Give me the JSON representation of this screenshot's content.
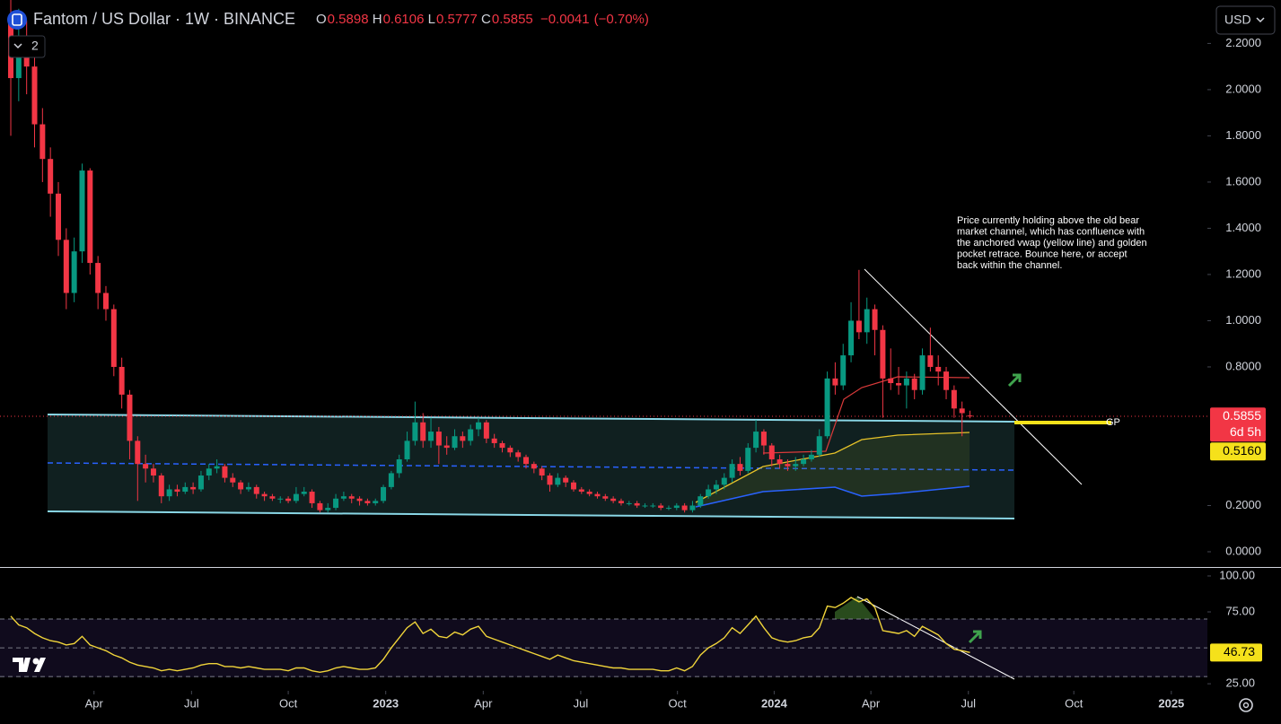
{
  "header": {
    "symbol": "Fantom / US Dollar · 1W · BINANCE",
    "o_label": "O",
    "h_label": "H",
    "l_label": "L",
    "c_label": "C",
    "change": "−0.0041",
    "change_pct": "(−0.70%)",
    "currency": "USD",
    "indicator_count": "2"
  },
  "annotation": [
    "Price currently holding above the old bear",
    "market channel, which has confluence with",
    "the anchored vwap (yellow line) and golden",
    "pocket retrace. Bounce here, or accept",
    "back within the channel."
  ],
  "gp_label": "GP",
  "countdown": "6d 5h",
  "vwap_tag": {
    "value": 0.516,
    "label": "0.5160"
  },
  "chart_data": [
    {
      "type": "candlestick",
      "up_color": "#089981",
      "down_color": "#f23645",
      "open": [
        2.3,
        2.05,
        2.2,
        2.1,
        1.85,
        1.7,
        1.55,
        1.35,
        1.12,
        1.3,
        1.65,
        1.25,
        1.12,
        1.05,
        0.8,
        0.68,
        0.48,
        0.38,
        0.36,
        0.33,
        0.24,
        0.27,
        0.26,
        0.28,
        0.27,
        0.33,
        0.36,
        0.37,
        0.32,
        0.3,
        0.27,
        0.28,
        0.25,
        0.24,
        0.23,
        0.23,
        0.22,
        0.25,
        0.26,
        0.21,
        0.18,
        0.19,
        0.23,
        0.24,
        0.23,
        0.22,
        0.21,
        0.22,
        0.28,
        0.34,
        0.4,
        0.48,
        0.56,
        0.48,
        0.52,
        0.46,
        0.45,
        0.5,
        0.48,
        0.53,
        0.56,
        0.49,
        0.47,
        0.45,
        0.43,
        0.41,
        0.38,
        0.36,
        0.33,
        0.29,
        0.32,
        0.3,
        0.27,
        0.26,
        0.25,
        0.24,
        0.23,
        0.22,
        0.21,
        0.21,
        0.2,
        0.2,
        0.2,
        0.19,
        0.19,
        0.2,
        0.18,
        0.2,
        0.24,
        0.27,
        0.29,
        0.32,
        0.38,
        0.35,
        0.45,
        0.52,
        0.46,
        0.4,
        0.38,
        0.37,
        0.38,
        0.4,
        0.42,
        0.5,
        0.75,
        0.72,
        0.85,
        1.0,
        0.95,
        1.05,
        0.96,
        0.75,
        0.73,
        0.72,
        0.75,
        0.7,
        0.85,
        0.8,
        0.78,
        0.7,
        0.62,
        0.5898
      ],
      "high": [
        2.45,
        2.35,
        2.3,
        2.15,
        1.92,
        1.75,
        1.6,
        1.4,
        1.36,
        1.68,
        1.66,
        1.28,
        1.15,
        1.07,
        0.84,
        0.7,
        0.5,
        0.42,
        0.38,
        0.34,
        0.29,
        0.29,
        0.3,
        0.3,
        0.35,
        0.38,
        0.4,
        0.38,
        0.34,
        0.31,
        0.3,
        0.29,
        0.26,
        0.25,
        0.24,
        0.24,
        0.28,
        0.28,
        0.27,
        0.22,
        0.21,
        0.25,
        0.26,
        0.25,
        0.24,
        0.23,
        0.23,
        0.29,
        0.35,
        0.42,
        0.52,
        0.65,
        0.6,
        0.58,
        0.54,
        0.5,
        0.53,
        0.52,
        0.55,
        0.58,
        0.57,
        0.51,
        0.48,
        0.46,
        0.44,
        0.42,
        0.39,
        0.37,
        0.34,
        0.34,
        0.33,
        0.31,
        0.28,
        0.27,
        0.26,
        0.25,
        0.24,
        0.23,
        0.22,
        0.22,
        0.21,
        0.21,
        0.21,
        0.2,
        0.21,
        0.21,
        0.22,
        0.25,
        0.29,
        0.31,
        0.34,
        0.4,
        0.41,
        0.47,
        0.57,
        0.53,
        0.47,
        0.42,
        0.4,
        0.41,
        0.42,
        0.44,
        0.53,
        0.78,
        0.82,
        0.9,
        1.08,
        1.22,
        1.1,
        1.07,
        0.98,
        0.88,
        0.8,
        0.78,
        0.77,
        0.88,
        0.97,
        0.85,
        0.8,
        0.72,
        0.65,
        0.6106
      ],
      "low": [
        1.8,
        1.95,
        1.98,
        1.75,
        1.6,
        1.45,
        1.28,
        1.05,
        1.08,
        1.25,
        1.2,
        1.05,
        1.0,
        0.76,
        0.62,
        0.4,
        0.22,
        0.3,
        0.3,
        0.21,
        0.22,
        0.24,
        0.25,
        0.25,
        0.26,
        0.31,
        0.34,
        0.3,
        0.28,
        0.25,
        0.26,
        0.23,
        0.22,
        0.22,
        0.21,
        0.21,
        0.21,
        0.24,
        0.19,
        0.17,
        0.17,
        0.18,
        0.22,
        0.21,
        0.2,
        0.2,
        0.2,
        0.21,
        0.27,
        0.32,
        0.39,
        0.46,
        0.45,
        0.45,
        0.38,
        0.42,
        0.44,
        0.45,
        0.46,
        0.5,
        0.47,
        0.45,
        0.43,
        0.41,
        0.39,
        0.36,
        0.34,
        0.31,
        0.26,
        0.28,
        0.28,
        0.26,
        0.25,
        0.24,
        0.23,
        0.22,
        0.21,
        0.2,
        0.2,
        0.19,
        0.19,
        0.19,
        0.18,
        0.18,
        0.18,
        0.17,
        0.17,
        0.19,
        0.23,
        0.25,
        0.27,
        0.3,
        0.33,
        0.34,
        0.43,
        0.42,
        0.37,
        0.36,
        0.35,
        0.35,
        0.37,
        0.39,
        0.41,
        0.49,
        0.68,
        0.7,
        0.82,
        0.92,
        0.9,
        0.85,
        0.58,
        0.7,
        0.68,
        0.62,
        0.66,
        0.68,
        0.78,
        0.72,
        0.66,
        0.58,
        0.5,
        0.5777
      ],
      "close": [
        2.05,
        2.2,
        2.1,
        1.85,
        1.7,
        1.55,
        1.35,
        1.12,
        1.3,
        1.65,
        1.25,
        1.12,
        1.05,
        0.8,
        0.68,
        0.48,
        0.38,
        0.36,
        0.33,
        0.24,
        0.27,
        0.26,
        0.28,
        0.27,
        0.33,
        0.36,
        0.37,
        0.32,
        0.3,
        0.27,
        0.28,
        0.25,
        0.24,
        0.23,
        0.23,
        0.22,
        0.25,
        0.26,
        0.21,
        0.18,
        0.19,
        0.23,
        0.24,
        0.23,
        0.22,
        0.21,
        0.22,
        0.28,
        0.34,
        0.4,
        0.48,
        0.56,
        0.48,
        0.52,
        0.46,
        0.45,
        0.5,
        0.48,
        0.53,
        0.56,
        0.49,
        0.47,
        0.45,
        0.43,
        0.41,
        0.38,
        0.36,
        0.33,
        0.29,
        0.32,
        0.3,
        0.27,
        0.26,
        0.25,
        0.24,
        0.23,
        0.22,
        0.21,
        0.21,
        0.2,
        0.2,
        0.2,
        0.19,
        0.19,
        0.2,
        0.18,
        0.2,
        0.24,
        0.27,
        0.29,
        0.32,
        0.38,
        0.35,
        0.45,
        0.52,
        0.46,
        0.4,
        0.38,
        0.37,
        0.38,
        0.4,
        0.42,
        0.5,
        0.75,
        0.72,
        0.85,
        1.0,
        0.95,
        1.05,
        0.96,
        0.75,
        0.73,
        0.72,
        0.75,
        0.7,
        0.85,
        0.8,
        0.78,
        0.7,
        0.62,
        0.6,
        0.5855
      ],
      "xlim": [
        -1.36,
        150.95
      ],
      "xticks": [
        {
          "value": 10.5,
          "label": "Apr"
        },
        {
          "value": 22.8,
          "label": "Jul"
        },
        {
          "value": 35,
          "label": "Oct"
        },
        {
          "value": 47.3,
          "label": "2023"
        },
        {
          "value": 59.6,
          "label": "Apr"
        },
        {
          "value": 71.9,
          "label": "Jul"
        },
        {
          "value": 84.1,
          "label": "Oct"
        },
        {
          "value": 96.3,
          "label": "2024"
        },
        {
          "value": 108.5,
          "label": "Apr"
        },
        {
          "value": 120.8,
          "label": "Jul"
        },
        {
          "value": 134.1,
          "label": "Oct"
        },
        {
          "value": 146.4,
          "label": "2025"
        }
      ],
      "ylim": [
        -0.066,
        2.388
      ],
      "yticks": [
        {
          "value": 0,
          "label": "0.0000"
        },
        {
          "value": 0.2,
          "label": "0.2000"
        },
        {
          "value": 0.8,
          "label": "0.8000"
        },
        {
          "value": 1,
          "label": "1.0000"
        },
        {
          "value": 1.2,
          "label": "1.2000"
        },
        {
          "value": 1.4,
          "label": "1.4000"
        },
        {
          "value": 1.6,
          "label": "1.6000"
        },
        {
          "value": 1.8,
          "label": "1.8000"
        },
        {
          "value": 2,
          "label": "2.0000"
        },
        {
          "value": 2.2,
          "label": "2.2000"
        }
      ]
    },
    {
      "type": "line",
      "color": "#f0d43a",
      "values": [
        72,
        66,
        64,
        60,
        57,
        55,
        54,
        52,
        53,
        58,
        52,
        50,
        48,
        45,
        43,
        40,
        38,
        37,
        36,
        34,
        35,
        34,
        35,
        36,
        38,
        39,
        39,
        37,
        37,
        36,
        37,
        36,
        35,
        35,
        35,
        34,
        36,
        36,
        34,
        33,
        34,
        36,
        37,
        36,
        35,
        35,
        36,
        42,
        50,
        57,
        64,
        68,
        60,
        63,
        58,
        57,
        61,
        59,
        63,
        65,
        58,
        56,
        54,
        52,
        50,
        48,
        46,
        44,
        42,
        45,
        43,
        41,
        40,
        39,
        38,
        37,
        36,
        36,
        35,
        35,
        35,
        35,
        34,
        34,
        36,
        34,
        37,
        45,
        50,
        53,
        57,
        64,
        60,
        66,
        72,
        64,
        57,
        55,
        54,
        55,
        57,
        58,
        64,
        79,
        78,
        81,
        85,
        82,
        84,
        78,
        62,
        61,
        60,
        62,
        58,
        65,
        62,
        59,
        53,
        49,
        48,
        46.73
      ],
      "ylim": [
        20.1,
        105.6
      ],
      "yticks": [
        {
          "value": 100,
          "label": "100.00"
        },
        {
          "value": 75,
          "label": "75.00"
        },
        {
          "value": 25,
          "label": "25.00"
        }
      ],
      "bands": [
        70,
        50,
        30
      ]
    }
  ]
}
